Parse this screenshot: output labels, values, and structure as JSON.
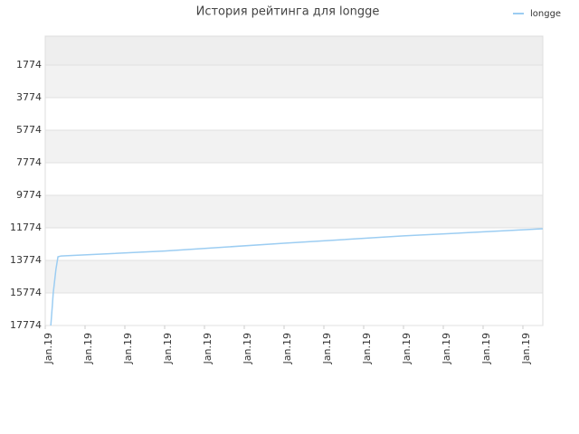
{
  "chart_data": {
    "type": "line",
    "title": "История рейтинга для longge",
    "x": [
      0.14,
      0.18,
      0.2,
      0.27,
      0.32,
      0.4,
      3,
      6,
      9,
      12.5
    ],
    "series": [
      {
        "name": "longge",
        "color": "#9ccdf2",
        "values": [
          17774,
          16500,
          15800,
          14300,
          13550,
          13500,
          13200,
          12718,
          12270,
          11830
        ]
      }
    ],
    "xlim": [
      0,
      12.5
    ],
    "xticks": [
      {
        "value": 0,
        "label": "Jan.19"
      },
      {
        "value": 1,
        "label": "Jan.19"
      },
      {
        "value": 2,
        "label": "Jan.19"
      },
      {
        "value": 3,
        "label": "Jan.19"
      },
      {
        "value": 4,
        "label": "Jan.19"
      },
      {
        "value": 5,
        "label": "Jan.19"
      },
      {
        "value": 6,
        "label": "Jan.19"
      },
      {
        "value": 7,
        "label": "Jan.19"
      },
      {
        "value": 8,
        "label": "Jan.19"
      },
      {
        "value": 9,
        "label": "Jan.19"
      },
      {
        "value": 10,
        "label": "Jan.19"
      },
      {
        "value": 11,
        "label": "Jan.19"
      },
      {
        "value": 12,
        "label": "Jan.19"
      }
    ],
    "ylim": [
      17774,
      -4
    ],
    "yticks": [
      1774,
      3774,
      5774,
      7774,
      9774,
      11774,
      13774,
      15774,
      17774
    ],
    "grid": true,
    "legend": "top-right"
  }
}
